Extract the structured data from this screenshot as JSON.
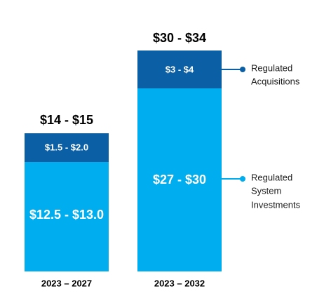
{
  "columns": [
    {
      "period": "2023 – 2027",
      "total": "$14 - $15",
      "segments": [
        "$1.5 - $2.0",
        "$12.5 - $13.0"
      ]
    },
    {
      "period": "2023 – 2032",
      "total": "$30 - $34",
      "segments": [
        "$3 - $4",
        "$27 - $30"
      ]
    }
  ],
  "legend": [
    {
      "lines": [
        "Regulated",
        "Acquisitions"
      ]
    },
    {
      "lines": [
        "Regulated",
        "System",
        "Investments"
      ]
    }
  ]
}
